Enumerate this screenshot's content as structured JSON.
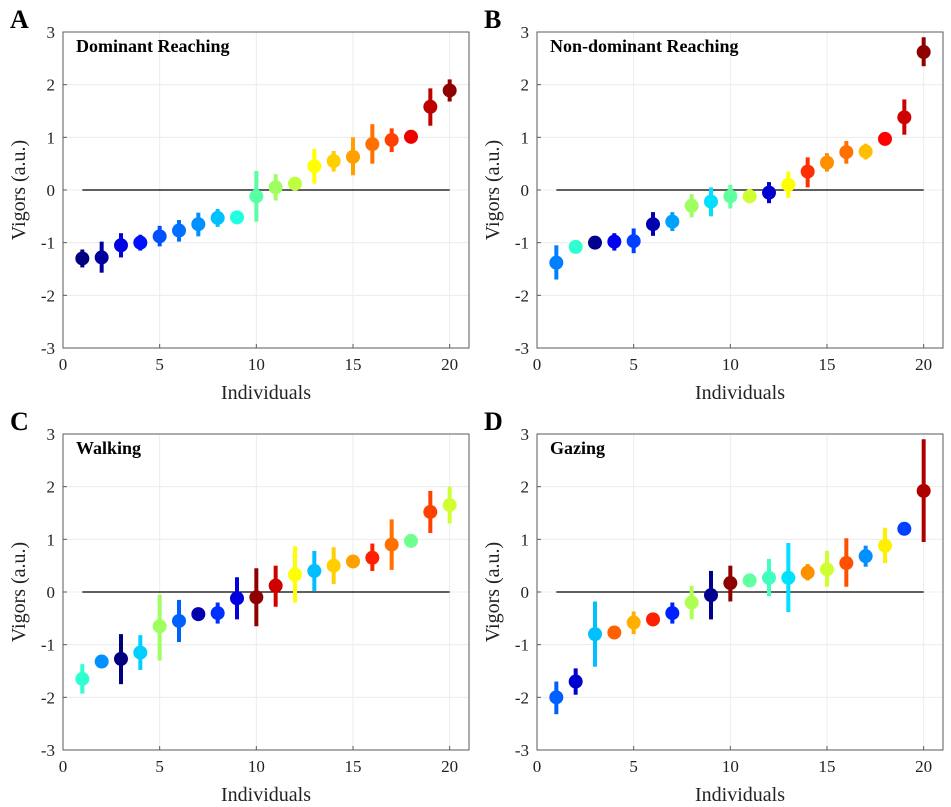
{
  "chart_data": [
    {
      "type": "scatter",
      "letter": "A",
      "title": "Dominant Reaching",
      "xlabel": "Individuals",
      "ylabel": "Vigors (a.u.)",
      "xlim": [
        0,
        21
      ],
      "ylim": [
        -3,
        3
      ],
      "xticks": [
        0,
        5,
        10,
        15,
        20
      ],
      "yticks": [
        -3,
        -2,
        -1,
        0,
        1,
        2,
        3
      ],
      "grid": true,
      "points": [
        {
          "x": 1,
          "y": -1.3,
          "lo": -1.47,
          "hi": -1.13,
          "color": "#00007f"
        },
        {
          "x": 2,
          "y": -1.28,
          "lo": -1.57,
          "hi": -0.98,
          "color": "#00009f"
        },
        {
          "x": 3,
          "y": -1.05,
          "lo": -1.28,
          "hi": -0.82,
          "color": "#0000e0"
        },
        {
          "x": 4,
          "y": -1.0,
          "lo": -1.15,
          "hi": -0.85,
          "color": "#0010ff"
        },
        {
          "x": 5,
          "y": -0.88,
          "lo": -1.07,
          "hi": -0.68,
          "color": "#0050ff"
        },
        {
          "x": 6,
          "y": -0.77,
          "lo": -0.98,
          "hi": -0.57,
          "color": "#0070ff"
        },
        {
          "x": 7,
          "y": -0.65,
          "lo": -0.88,
          "hi": -0.43,
          "color": "#0090ff"
        },
        {
          "x": 8,
          "y": -0.53,
          "lo": -0.7,
          "hi": -0.36,
          "color": "#00c0ff"
        },
        {
          "x": 9,
          "y": -0.52,
          "lo": -0.62,
          "hi": -0.42,
          "color": "#20ffdf"
        },
        {
          "x": 10,
          "y": -0.12,
          "lo": -0.6,
          "hi": 0.36,
          "color": "#5affa5"
        },
        {
          "x": 11,
          "y": 0.05,
          "lo": -0.2,
          "hi": 0.3,
          "color": "#9fff60"
        },
        {
          "x": 12,
          "y": 0.12,
          "lo": 0.02,
          "hi": 0.22,
          "color": "#bfff40"
        },
        {
          "x": 13,
          "y": 0.45,
          "lo": 0.12,
          "hi": 0.78,
          "color": "#ffff00"
        },
        {
          "x": 14,
          "y": 0.55,
          "lo": 0.35,
          "hi": 0.74,
          "color": "#ffcf00"
        },
        {
          "x": 15,
          "y": 0.63,
          "lo": 0.28,
          "hi": 1.0,
          "color": "#ff9f00"
        },
        {
          "x": 16,
          "y": 0.87,
          "lo": 0.5,
          "hi": 1.25,
          "color": "#ff7000"
        },
        {
          "x": 17,
          "y": 0.95,
          "lo": 0.72,
          "hi": 1.17,
          "color": "#ff4000"
        },
        {
          "x": 18,
          "y": 1.01,
          "lo": 0.88,
          "hi": 1.13,
          "color": "#ef0000"
        },
        {
          "x": 19,
          "y": 1.58,
          "lo": 1.22,
          "hi": 1.93,
          "color": "#bf0000"
        },
        {
          "x": 20,
          "y": 1.89,
          "lo": 1.68,
          "hi": 2.1,
          "color": "#8f0000"
        }
      ]
    },
    {
      "type": "scatter",
      "letter": "B",
      "title": "Non-dominant Reaching",
      "xlabel": "Individuals",
      "ylabel": "Vigors (a.u.)",
      "xlim": [
        0,
        21
      ],
      "ylim": [
        -3,
        3
      ],
      "xticks": [
        0,
        5,
        10,
        15,
        20
      ],
      "yticks": [
        -3,
        -2,
        -1,
        0,
        1,
        2,
        3
      ],
      "grid": true,
      "points": [
        {
          "x": 1,
          "y": -1.38,
          "lo": -1.7,
          "hi": -1.05,
          "color": "#0080ff"
        },
        {
          "x": 2,
          "y": -1.08,
          "lo": -1.15,
          "hi": -1.0,
          "color": "#30ffcf"
        },
        {
          "x": 3,
          "y": -1.0,
          "lo": -1.08,
          "hi": -0.92,
          "color": "#00008f"
        },
        {
          "x": 4,
          "y": -0.98,
          "lo": -1.15,
          "hi": -0.82,
          "color": "#0000ef"
        },
        {
          "x": 5,
          "y": -0.97,
          "lo": -1.2,
          "hi": -0.73,
          "color": "#0040ff"
        },
        {
          "x": 6,
          "y": -0.65,
          "lo": -0.87,
          "hi": -0.42,
          "color": "#0000af"
        },
        {
          "x": 7,
          "y": -0.6,
          "lo": -0.78,
          "hi": -0.42,
          "color": "#00a0ff"
        },
        {
          "x": 8,
          "y": -0.3,
          "lo": -0.52,
          "hi": -0.08,
          "color": "#9fff60"
        },
        {
          "x": 9,
          "y": -0.22,
          "lo": -0.5,
          "hi": 0.05,
          "color": "#00e0ff"
        },
        {
          "x": 10,
          "y": -0.12,
          "lo": -0.35,
          "hi": 0.1,
          "color": "#60ff9f"
        },
        {
          "x": 11,
          "y": -0.12,
          "lo": -0.25,
          "hi": 0.02,
          "color": "#cfff30"
        },
        {
          "x": 12,
          "y": -0.05,
          "lo": -0.25,
          "hi": 0.15,
          "color": "#0000cf"
        },
        {
          "x": 13,
          "y": 0.1,
          "lo": -0.15,
          "hi": 0.35,
          "color": "#ffff00"
        },
        {
          "x": 14,
          "y": 0.35,
          "lo": 0.05,
          "hi": 0.62,
          "color": "#ff3000"
        },
        {
          "x": 15,
          "y": 0.52,
          "lo": 0.35,
          "hi": 0.7,
          "color": "#ff8f00"
        },
        {
          "x": 16,
          "y": 0.72,
          "lo": 0.5,
          "hi": 0.93,
          "color": "#ff7000"
        },
        {
          "x": 17,
          "y": 0.73,
          "lo": 0.58,
          "hi": 0.88,
          "color": "#ffbf00"
        },
        {
          "x": 18,
          "y": 0.97,
          "lo": 0.92,
          "hi": 1.02,
          "color": "#ff0000"
        },
        {
          "x": 19,
          "y": 1.38,
          "lo": 1.05,
          "hi": 1.72,
          "color": "#cf0000"
        },
        {
          "x": 20,
          "y": 2.62,
          "lo": 2.35,
          "hi": 2.9,
          "color": "#8f0000"
        }
      ]
    },
    {
      "type": "scatter",
      "letter": "C",
      "title": "Walking",
      "xlabel": "Individuals",
      "ylabel": "Vigors (a.u.)",
      "xlim": [
        0,
        21
      ],
      "ylim": [
        -3,
        3
      ],
      "xticks": [
        0,
        5,
        10,
        15,
        20
      ],
      "yticks": [
        -3,
        -2,
        -1,
        0,
        1,
        2,
        3
      ],
      "grid": true,
      "points": [
        {
          "x": 1,
          "y": -1.65,
          "lo": -1.93,
          "hi": -1.37,
          "color": "#30ffcf"
        },
        {
          "x": 2,
          "y": -1.32,
          "lo": -1.4,
          "hi": -1.25,
          "color": "#0090ff"
        },
        {
          "x": 3,
          "y": -1.27,
          "lo": -1.75,
          "hi": -0.8,
          "color": "#00007f"
        },
        {
          "x": 4,
          "y": -1.15,
          "lo": -1.48,
          "hi": -0.82,
          "color": "#00d0ff"
        },
        {
          "x": 5,
          "y": -0.65,
          "lo": -1.3,
          "hi": -0.05,
          "color": "#9fff60"
        },
        {
          "x": 6,
          "y": -0.55,
          "lo": -0.95,
          "hi": -0.15,
          "color": "#0060ff"
        },
        {
          "x": 7,
          "y": -0.42,
          "lo": -0.52,
          "hi": -0.33,
          "color": "#0000af"
        },
        {
          "x": 8,
          "y": -0.4,
          "lo": -0.6,
          "hi": -0.2,
          "color": "#0030ff"
        },
        {
          "x": 9,
          "y": -0.12,
          "lo": -0.52,
          "hi": 0.28,
          "color": "#0000df"
        },
        {
          "x": 10,
          "y": -0.1,
          "lo": -0.65,
          "hi": 0.45,
          "color": "#8f0000"
        },
        {
          "x": 11,
          "y": 0.12,
          "lo": -0.28,
          "hi": 0.5,
          "color": "#cf0000"
        },
        {
          "x": 12,
          "y": 0.33,
          "lo": -0.2,
          "hi": 0.87,
          "color": "#ffff00"
        },
        {
          "x": 13,
          "y": 0.4,
          "lo": 0.02,
          "hi": 0.78,
          "color": "#00bfff"
        },
        {
          "x": 14,
          "y": 0.5,
          "lo": 0.15,
          "hi": 0.85,
          "color": "#ffcf00"
        },
        {
          "x": 15,
          "y": 0.58,
          "lo": 0.48,
          "hi": 0.68,
          "color": "#ff9f00"
        },
        {
          "x": 16,
          "y": 0.65,
          "lo": 0.4,
          "hi": 0.92,
          "color": "#ff2000"
        },
        {
          "x": 17,
          "y": 0.9,
          "lo": 0.42,
          "hi": 1.38,
          "color": "#ff7000"
        },
        {
          "x": 18,
          "y": 0.97,
          "lo": 0.92,
          "hi": 1.02,
          "color": "#70ff8f"
        },
        {
          "x": 19,
          "y": 1.52,
          "lo": 1.12,
          "hi": 1.92,
          "color": "#ff4000"
        },
        {
          "x": 20,
          "y": 1.65,
          "lo": 1.3,
          "hi": 2.0,
          "color": "#cfff30"
        }
      ]
    },
    {
      "type": "scatter",
      "letter": "D",
      "title": "Gazing",
      "xlabel": "Individuals",
      "ylabel": "Vigors (a.u.)",
      "xlim": [
        0,
        21
      ],
      "ylim": [
        -3,
        3
      ],
      "xticks": [
        0,
        5,
        10,
        15,
        20
      ],
      "yticks": [
        -3,
        -2,
        -1,
        0,
        1,
        2,
        3
      ],
      "grid": true,
      "points": [
        {
          "x": 1,
          "y": -2.0,
          "lo": -2.32,
          "hi": -1.7,
          "color": "#0060ff"
        },
        {
          "x": 2,
          "y": -1.7,
          "lo": -1.95,
          "hi": -1.45,
          "color": "#0000cf"
        },
        {
          "x": 3,
          "y": -0.8,
          "lo": -1.42,
          "hi": -0.18,
          "color": "#00c0ff"
        },
        {
          "x": 4,
          "y": -0.77,
          "lo": -0.88,
          "hi": -0.66,
          "color": "#ff6000"
        },
        {
          "x": 5,
          "y": -0.58,
          "lo": -0.8,
          "hi": -0.37,
          "color": "#ffaf00"
        },
        {
          "x": 6,
          "y": -0.52,
          "lo": -0.65,
          "hi": -0.4,
          "color": "#ff2000"
        },
        {
          "x": 7,
          "y": -0.4,
          "lo": -0.6,
          "hi": -0.2,
          "color": "#0020ff"
        },
        {
          "x": 8,
          "y": -0.2,
          "lo": -0.52,
          "hi": 0.12,
          "color": "#afff50"
        },
        {
          "x": 9,
          "y": -0.06,
          "lo": -0.52,
          "hi": 0.4,
          "color": "#00008f"
        },
        {
          "x": 10,
          "y": 0.17,
          "lo": -0.18,
          "hi": 0.5,
          "color": "#8f0000"
        },
        {
          "x": 11,
          "y": 0.22,
          "lo": 0.12,
          "hi": 0.32,
          "color": "#60ff9f"
        },
        {
          "x": 12,
          "y": 0.27,
          "lo": -0.08,
          "hi": 0.63,
          "color": "#40ffbf"
        },
        {
          "x": 13,
          "y": 0.27,
          "lo": -0.38,
          "hi": 0.93,
          "color": "#00e0ff"
        },
        {
          "x": 14,
          "y": 0.37,
          "lo": 0.22,
          "hi": 0.53,
          "color": "#ff9000"
        },
        {
          "x": 15,
          "y": 0.43,
          "lo": 0.1,
          "hi": 0.78,
          "color": "#cfff30"
        },
        {
          "x": 16,
          "y": 0.55,
          "lo": 0.1,
          "hi": 1.02,
          "color": "#ff5000"
        },
        {
          "x": 17,
          "y": 0.68,
          "lo": 0.48,
          "hi": 0.88,
          "color": "#0090ff"
        },
        {
          "x": 18,
          "y": 0.88,
          "lo": 0.55,
          "hi": 1.22,
          "color": "#ffef00"
        },
        {
          "x": 19,
          "y": 1.2,
          "lo": 1.12,
          "hi": 1.28,
          "color": "#0040ff"
        },
        {
          "x": 20,
          "y": 1.92,
          "lo": 0.95,
          "hi": 2.9,
          "color": "#af0000"
        }
      ]
    }
  ]
}
